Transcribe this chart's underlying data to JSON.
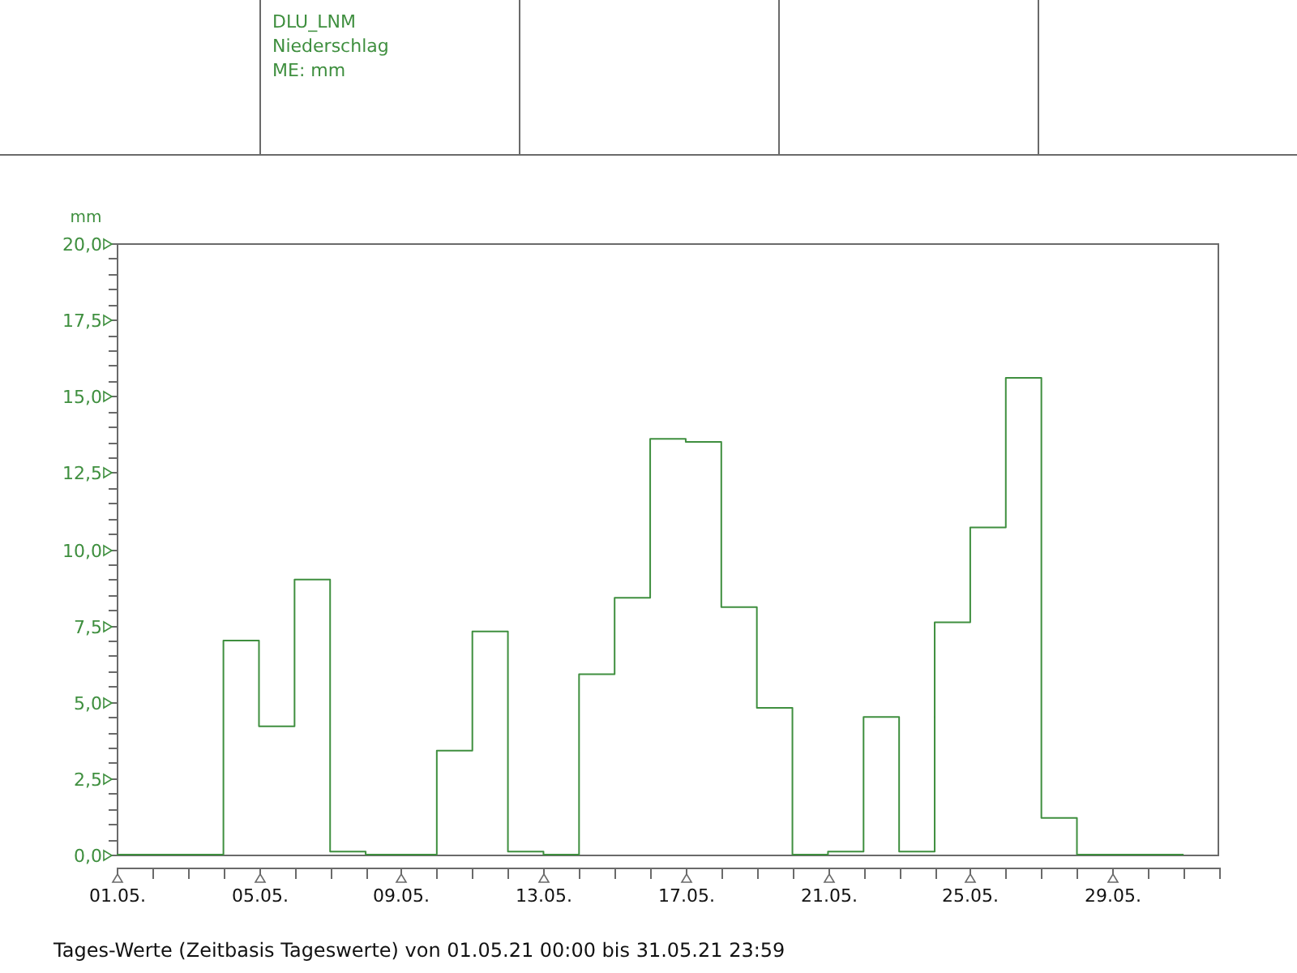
{
  "chart_data": {
    "type": "step",
    "ylabel": "mm",
    "legend_title": "DLU_LNM",
    "legend": "top",
    "marker": "none",
    "grid": false,
    "x": [
      "--05-01",
      "--05-02",
      "--05-03",
      "--05-04",
      "--05-05",
      "--05-06",
      "--05-07",
      "--05-08",
      "--05-09",
      "--05-10",
      "--05-11",
      "--05-12",
      "--05-13",
      "--05-14",
      "--05-15",
      "--05-16",
      "--05-17",
      "--05-18",
      "--05-19",
      "--05-20",
      "--05-21",
      "--05-22",
      "--05-23",
      "--05-24",
      "--05-25",
      "--05-26",
      "--05-27",
      "--05-28",
      "--05-29",
      "--05-30",
      "--05-31"
    ],
    "series": [
      {
        "name": "Niederschlag",
        "color": "#3f8f3f",
        "values": [
          0,
          0,
          0,
          7.0,
          4.2,
          9.0,
          0.1,
          0,
          0,
          3.4,
          7.3,
          0.1,
          0,
          5.9,
          8.4,
          13.6,
          13.5,
          8.1,
          4.8,
          0,
          0.1,
          4.5,
          0.1,
          7.6,
          10.7,
          15.6,
          1.2,
          0,
          0,
          0,
          0
        ]
      }
    ],
    "xlim": [
      "--05-01",
      "--06-01"
    ],
    "xticks": [
      {
        "value": "--05-01",
        "label": "01.05."
      },
      {
        "value": "--05-02",
        "label": null
      },
      {
        "value": "--05-03",
        "label": null
      },
      {
        "value": "--05-04",
        "label": null
      },
      {
        "value": "--05-05",
        "label": "05.05."
      },
      {
        "value": "--05-06",
        "label": null
      },
      {
        "value": "--05-07",
        "label": null
      },
      {
        "value": "--05-08",
        "label": null
      },
      {
        "value": "--05-09",
        "label": "09.05."
      },
      {
        "value": "--05-10",
        "label": null
      },
      {
        "value": "--05-11",
        "label": null
      },
      {
        "value": "--05-12",
        "label": null
      },
      {
        "value": "--05-13",
        "label": "13.05."
      },
      {
        "value": "--05-14",
        "label": null
      },
      {
        "value": "--05-15",
        "label": null
      },
      {
        "value": "--05-16",
        "label": null
      },
      {
        "value": "--05-17",
        "label": "17.05."
      },
      {
        "value": "--05-18",
        "label": null
      },
      {
        "value": "--05-19",
        "label": null
      },
      {
        "value": "--05-20",
        "label": null
      },
      {
        "value": "--05-21",
        "label": "21.05."
      },
      {
        "value": "--05-22",
        "label": null
      },
      {
        "value": "--05-23",
        "label": null
      },
      {
        "value": "--05-24",
        "label": null
      },
      {
        "value": "--05-25",
        "label": "25.05."
      },
      {
        "value": "--05-26",
        "label": null
      },
      {
        "value": "--05-27",
        "label": null
      },
      {
        "value": "--05-28",
        "label": null
      },
      {
        "value": "--05-29",
        "label": "29.05."
      },
      {
        "value": "--05-30",
        "label": null
      },
      {
        "value": "--05-31",
        "label": null
      },
      {
        "value": "--06-01",
        "label": null
      }
    ],
    "ylim": [
      0,
      20
    ],
    "yticks": [
      {
        "value": 0,
        "label": "0,0"
      },
      {
        "value": 0.5,
        "label": null
      },
      {
        "value": 1,
        "label": null
      },
      {
        "value": 1.5,
        "label": null
      },
      {
        "value": 2,
        "label": null
      },
      {
        "value": 2.5,
        "label": "2,5"
      },
      {
        "value": 3,
        "label": null
      },
      {
        "value": 3.5,
        "label": null
      },
      {
        "value": 4,
        "label": null
      },
      {
        "value": 4.5,
        "label": null
      },
      {
        "value": 5,
        "label": "5,0"
      },
      {
        "value": 5.5,
        "label": null
      },
      {
        "value": 6,
        "label": null
      },
      {
        "value": 6.5,
        "label": null
      },
      {
        "value": 7,
        "label": null
      },
      {
        "value": 7.5,
        "label": "7,5"
      },
      {
        "value": 8,
        "label": null
      },
      {
        "value": 8.5,
        "label": null
      },
      {
        "value": 9,
        "label": null
      },
      {
        "value": 9.5,
        "label": null
      },
      {
        "value": 10,
        "label": "10,0"
      },
      {
        "value": 10.5,
        "label": null
      },
      {
        "value": 11,
        "label": null
      },
      {
        "value": 11.5,
        "label": null
      },
      {
        "value": 12,
        "label": null
      },
      {
        "value": 12.5,
        "label": "12,5"
      },
      {
        "value": 13,
        "label": null
      },
      {
        "value": 13.5,
        "label": null
      },
      {
        "value": 14,
        "label": null
      },
      {
        "value": 14.5,
        "label": null
      },
      {
        "value": 15,
        "label": "15,0"
      },
      {
        "value": 15.5,
        "label": null
      },
      {
        "value": 16,
        "label": null
      },
      {
        "value": 16.5,
        "label": null
      },
      {
        "value": 17,
        "label": null
      },
      {
        "value": 17.5,
        "label": "17,5"
      },
      {
        "value": 18,
        "label": null
      },
      {
        "value": 18.5,
        "label": null
      },
      {
        "value": 19,
        "label": null
      },
      {
        "value": 19.5,
        "label": null
      },
      {
        "value": 20,
        "label": "20,0"
      }
    ],
    "annotations": [
      "ME: mm",
      "Tages-Werte (Zeitbasis Tageswerte) von 01.05.21 00:00 bis 31.05.21 23:59"
    ]
  }
}
